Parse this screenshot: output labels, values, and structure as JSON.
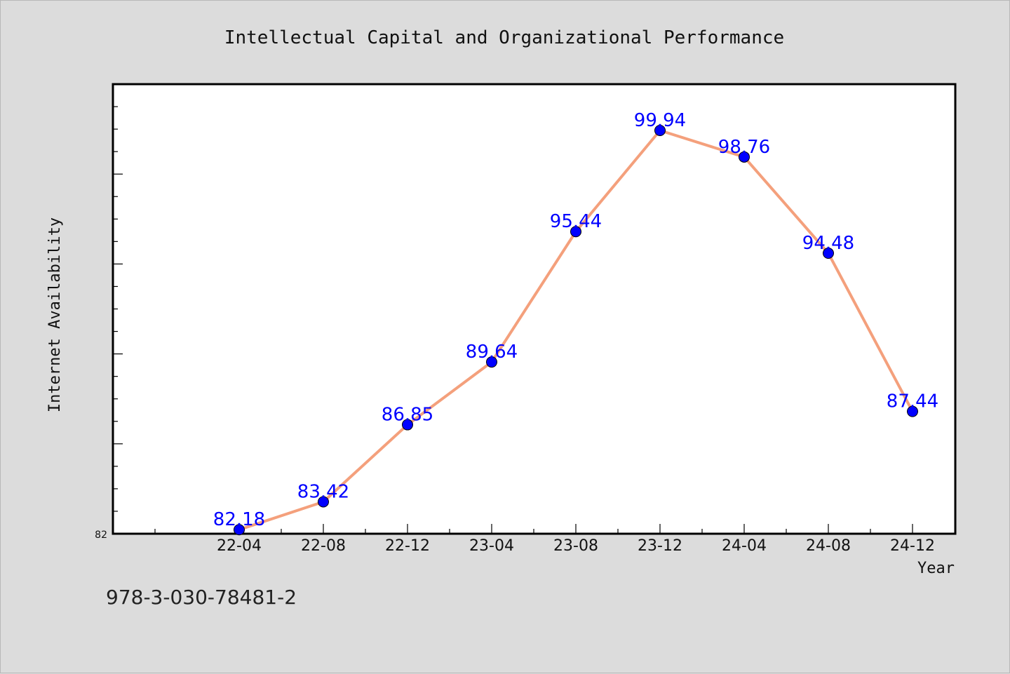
{
  "footer": {
    "isbn": "978-3-030-78481-2"
  },
  "chart_data": {
    "type": "line",
    "title": "Intellectual Capital and Organizational Performance",
    "xlabel": "Year",
    "ylabel": "Internet Availability",
    "categories": [
      "22-04",
      "22-08",
      "22-12",
      "23-04",
      "23-08",
      "23-12",
      "24-04",
      "24-08",
      "24-12"
    ],
    "series": [
      {
        "values": [
          82.18,
          83.42,
          86.85,
          89.64,
          95.44,
          99.94,
          98.76,
          94.48,
          87.44
        ]
      }
    ],
    "data_labels": [
      "82.18",
      "83.42",
      "86.85",
      "89.64",
      "95.44",
      "99.94",
      "98.76",
      "94.48",
      "87.44"
    ],
    "ytick_labels": [
      "82"
    ],
    "ylim": [
      82,
      102
    ],
    "grid": false,
    "legend": "none",
    "colors": {
      "line": "#f4a07c",
      "marker": "#0000ff",
      "label": "#0000ff",
      "background": "#dcdcdc",
      "plot": "#ffffff"
    }
  }
}
